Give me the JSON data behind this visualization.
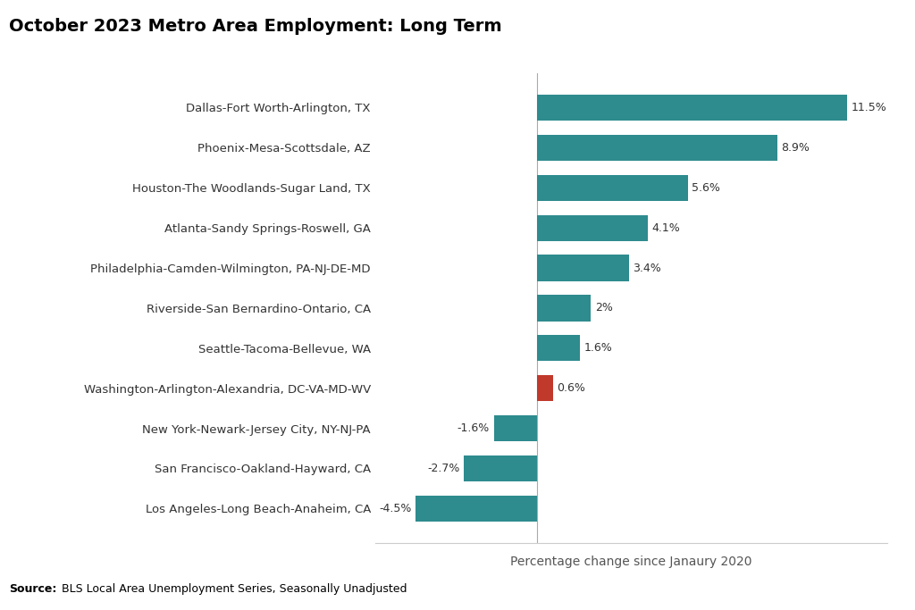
{
  "title": "October 2023 Metro Area Employment: Long Term",
  "categories": [
    "Dallas-Fort Worth-Arlington, TX",
    "Phoenix-Mesa-Scottsdale, AZ",
    "Houston-The Woodlands-Sugar Land, TX",
    "Atlanta-Sandy Springs-Roswell, GA",
    "Philadelphia-Camden-Wilmington, PA-NJ-DE-MD",
    "Riverside-San Bernardino-Ontario, CA",
    "Seattle-Tacoma-Bellevue, WA",
    "Washington-Arlington-Alexandria, DC-VA-MD-WV",
    "New York-Newark-Jersey City, NY-NJ-PA",
    "San Francisco-Oakland-Hayward, CA",
    "Los Angeles-Long Beach-Anaheim, CA"
  ],
  "values": [
    11.5,
    8.9,
    5.6,
    4.1,
    3.4,
    2.0,
    1.6,
    0.6,
    -1.6,
    -2.7,
    -4.5
  ],
  "bar_colors": [
    "#2e8b8e",
    "#2e8b8e",
    "#2e8b8e",
    "#2e8b8e",
    "#2e8b8e",
    "#2e8b8e",
    "#2e8b8e",
    "#c0392b",
    "#2e8b8e",
    "#2e8b8e",
    "#2e8b8e"
  ],
  "value_labels": [
    "11.5%",
    "8.9%",
    "5.6%",
    "4.1%",
    "3.4%",
    "2%",
    "1.6%",
    "0.6%",
    "-1.6%",
    "-2.7%",
    "-4.5%"
  ],
  "xlabel": "Percentage change since Janaury 2020",
  "source_bold": "Source:",
  "source_rest": " BLS Local Area Unemployment Series, Seasonally Unadjusted",
  "xlim": [
    -6,
    13
  ],
  "background_color": "#ffffff",
  "plot_bg_color": "#ffffff",
  "bar_height": 0.65,
  "label_fontsize": 9.5,
  "title_fontsize": 14,
  "xlabel_fontsize": 10,
  "source_fontsize": 9,
  "value_label_fontsize": 9
}
